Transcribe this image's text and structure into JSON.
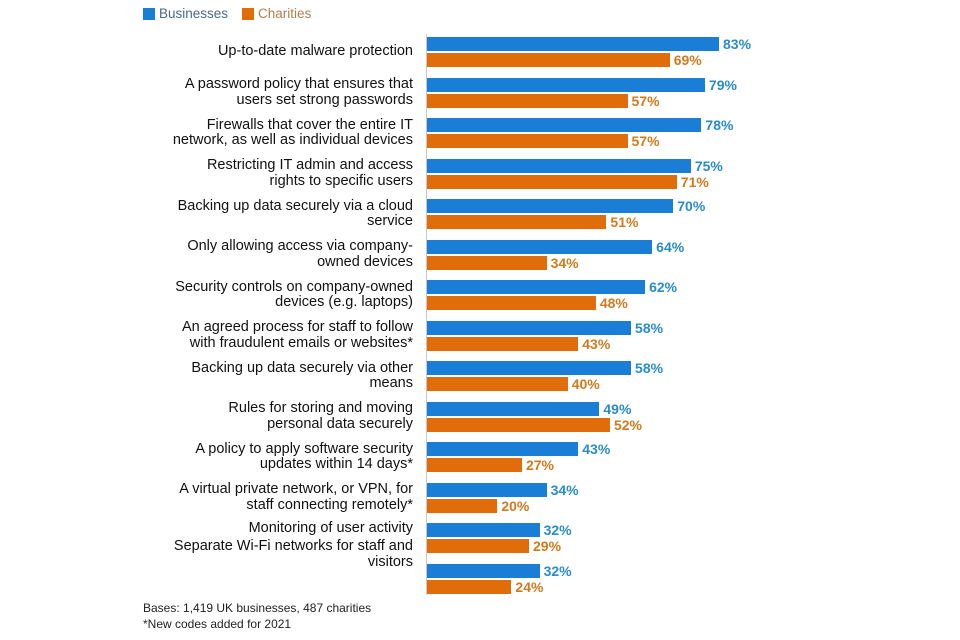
{
  "chart_data": {
    "type": "bar",
    "orientation": "horizontal",
    "title": "",
    "xlabel": "",
    "ylabel": "",
    "xlim": [
      0,
      100
    ],
    "legend": {
      "position": "top-left",
      "entries": [
        "Businesses",
        "Charities"
      ]
    },
    "colors": {
      "Businesses": "#1a7ed6",
      "Charities": "#e06c0a",
      "Businesses_text": "#2a8cc8",
      "Charities_text": "#d27a1e"
    },
    "categories": [
      [
        "Up-to-date malware protection"
      ],
      [
        "A password policy that ensures that",
        "users set strong passwords"
      ],
      [
        "Firewalls that cover the entire IT",
        "network, as well as individual devices"
      ],
      [
        "Restricting IT admin and access",
        "rights to specific users"
      ],
      [
        "Backing up data securely via a cloud",
        "service"
      ],
      [
        "Only allowing access via company-",
        "owned devices"
      ],
      [
        "Security controls on company-owned",
        "devices (e.g. laptops)"
      ],
      [
        "An agreed process for staff to follow",
        "with fraudulent emails or websites*"
      ],
      [
        "Backing up data securely via other",
        "means"
      ],
      [
        "Rules for storing and moving",
        "personal data securely"
      ],
      [
        "A policy to apply software security",
        "updates within 14 days*"
      ],
      [
        "A virtual private network, or VPN, for",
        "staff connecting remotely*"
      ],
      [
        "Monitoring of user activity"
      ],
      [
        "Separate Wi-Fi networks for staff and",
        "visitors"
      ]
    ],
    "series": [
      {
        "name": "Businesses",
        "values": [
          83,
          79,
          78,
          75,
          70,
          64,
          62,
          58,
          58,
          49,
          43,
          34,
          32,
          32
        ]
      },
      {
        "name": "Charities",
        "values": [
          69,
          57,
          57,
          71,
          51,
          34,
          48,
          43,
          40,
          52,
          27,
          20,
          29,
          24
        ]
      }
    ],
    "value_suffix": "%"
  },
  "footnotes": {
    "bases": "Bases: 1,419 UK businesses, 487 charities",
    "new_codes": "*New codes added for 2021"
  }
}
